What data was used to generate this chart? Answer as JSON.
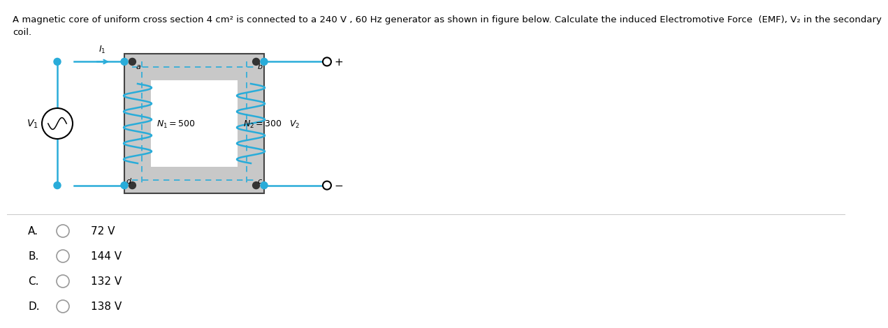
{
  "title_line1": "A magnetic core of uniform cross section 4 cm² is connected to a 240 V , 60 Hz generator as shown in figure below. Calculate the induced Electromotive Force  (EMF), V₂ in the secondary",
  "title_line2": "coil.",
  "title_fontsize": 9.5,
  "background_color": "#ffffff",
  "core_color": "#c8c8c8",
  "core_edge_color": "#444444",
  "wire_color": "#29acd9",
  "text_color": "#000000",
  "separator_color": "#cccccc",
  "options": [
    {
      "label": "A.",
      "value": "72 V"
    },
    {
      "label": "B.",
      "value": "144 V"
    },
    {
      "label": "C.",
      "value": "132 V"
    },
    {
      "label": "D.",
      "value": "138 V"
    }
  ]
}
